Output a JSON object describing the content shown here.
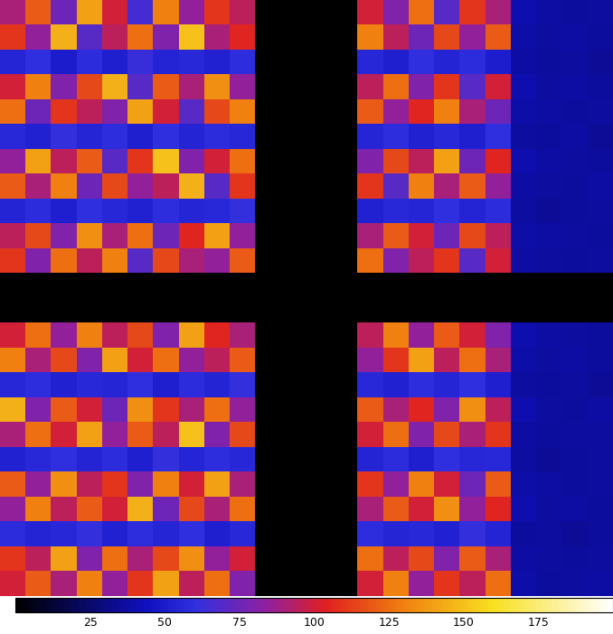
{
  "chart_data": {
    "type": "heatmap",
    "tick_labels": false,
    "cells": [
      [
        90,
        120,
        75,
        140,
        100,
        65,
        130,
        85,
        110,
        95,
        0,
        0,
        0,
        0,
        100,
        80,
        125,
        70,
        110,
        90,
        40,
        38,
        36,
        37
      ],
      [
        110,
        85,
        145,
        70,
        95,
        125,
        80,
        150,
        90,
        105,
        0,
        0,
        0,
        0,
        130,
        95,
        75,
        115,
        85,
        120,
        39,
        37,
        38,
        36
      ],
      [
        55,
        60,
        50,
        58,
        52,
        62,
        54,
        57,
        53,
        59,
        0,
        0,
        0,
        0,
        56,
        52,
        60,
        54,
        58,
        51,
        38,
        36,
        37,
        35
      ],
      [
        100,
        130,
        80,
        115,
        145,
        70,
        120,
        90,
        135,
        85,
        0,
        0,
        0,
        0,
        95,
        125,
        80,
        110,
        70,
        100,
        40,
        37,
        38,
        36
      ],
      [
        125,
        75,
        110,
        95,
        80,
        140,
        100,
        70,
        115,
        130,
        0,
        0,
        0,
        0,
        120,
        85,
        105,
        130,
        90,
        75,
        39,
        38,
        36,
        37
      ],
      [
        57,
        53,
        61,
        55,
        59,
        52,
        60,
        54,
        58,
        56,
        0,
        0,
        0,
        0,
        55,
        59,
        53,
        57,
        52,
        60,
        37,
        36,
        38,
        35
      ],
      [
        85,
        140,
        95,
        120,
        70,
        110,
        150,
        80,
        100,
        125,
        0,
        0,
        0,
        0,
        80,
        115,
        95,
        140,
        75,
        105,
        40,
        38,
        37,
        36
      ],
      [
        120,
        90,
        130,
        75,
        115,
        85,
        95,
        145,
        70,
        110,
        0,
        0,
        0,
        0,
        110,
        70,
        130,
        90,
        120,
        85,
        38,
        37,
        36,
        38
      ],
      [
        54,
        58,
        52,
        60,
        56,
        53,
        59,
        55,
        57,
        61,
        0,
        0,
        0,
        0,
        53,
        57,
        55,
        60,
        54,
        58,
        37,
        35,
        36,
        37
      ],
      [
        95,
        115,
        80,
        135,
        90,
        125,
        75,
        105,
        140,
        85,
        0,
        0,
        0,
        0,
        90,
        120,
        100,
        75,
        115,
        95,
        39,
        38,
        37,
        36
      ],
      [
        110,
        80,
        125,
        95,
        130,
        70,
        115,
        90,
        85,
        120,
        0,
        0,
        0,
        0,
        125,
        80,
        95,
        110,
        70,
        100,
        38,
        37,
        36,
        37
      ],
      [
        0,
        0,
        0,
        0,
        0,
        0,
        0,
        0,
        0,
        0,
        0,
        0,
        0,
        0,
        0,
        0,
        0,
        0,
        0,
        0,
        0,
        0,
        0,
        0
      ],
      [
        0,
        0,
        0,
        0,
        0,
        0,
        0,
        0,
        0,
        0,
        0,
        0,
        0,
        0,
        0,
        0,
        0,
        0,
        0,
        0,
        0,
        0,
        0,
        0
      ],
      [
        100,
        125,
        85,
        130,
        95,
        115,
        80,
        140,
        105,
        90,
        0,
        0,
        0,
        0,
        95,
        130,
        85,
        120,
        100,
        80,
        40,
        38,
        37,
        36
      ],
      [
        130,
        90,
        115,
        80,
        140,
        100,
        125,
        85,
        95,
        120,
        0,
        0,
        0,
        0,
        85,
        110,
        140,
        95,
        125,
        90,
        39,
        37,
        38,
        36
      ],
      [
        56,
        59,
        53,
        57,
        55,
        60,
        52,
        58,
        54,
        61,
        0,
        0,
        0,
        0,
        57,
        53,
        59,
        55,
        60,
        52,
        37,
        36,
        37,
        35
      ],
      [
        145,
        80,
        120,
        100,
        75,
        135,
        110,
        90,
        125,
        85,
        0,
        0,
        0,
        0,
        120,
        90,
        105,
        80,
        135,
        95,
        40,
        37,
        36,
        38
      ],
      [
        90,
        125,
        100,
        140,
        85,
        120,
        95,
        150,
        80,
        115,
        0,
        0,
        0,
        0,
        100,
        125,
        80,
        115,
        90,
        110,
        38,
        36,
        37,
        37
      ],
      [
        53,
        57,
        60,
        54,
        58,
        52,
        61,
        55,
        59,
        56,
        0,
        0,
        0,
        0,
        54,
        58,
        52,
        60,
        56,
        57,
        37,
        35,
        36,
        37
      ],
      [
        120,
        85,
        135,
        95,
        110,
        80,
        130,
        100,
        140,
        90,
        0,
        0,
        0,
        0,
        110,
        85,
        130,
        100,
        75,
        120,
        39,
        38,
        36,
        37
      ],
      [
        85,
        130,
        95,
        120,
        100,
        145,
        75,
        115,
        90,
        125,
        0,
        0,
        0,
        0,
        90,
        120,
        100,
        135,
        85,
        105,
        40,
        37,
        38,
        36
      ],
      [
        58,
        54,
        56,
        61,
        53,
        59,
        55,
        60,
        52,
        57,
        0,
        0,
        0,
        0,
        59,
        55,
        57,
        53,
        61,
        54,
        36,
        37,
        35,
        36
      ],
      [
        110,
        95,
        140,
        80,
        125,
        90,
        115,
        135,
        85,
        100,
        0,
        0,
        0,
        0,
        125,
        95,
        115,
        80,
        120,
        90,
        38,
        37,
        36,
        37
      ],
      [
        100,
        120,
        90,
        130,
        85,
        110,
        140,
        95,
        125,
        80,
        0,
        0,
        0,
        0,
        100,
        130,
        85,
        110,
        95,
        125,
        39,
        36,
        37,
        38
      ]
    ],
    "color_range": [
      0,
      200
    ],
    "color_ticks": [
      25,
      50,
      75,
      100,
      125,
      150,
      175
    ]
  }
}
